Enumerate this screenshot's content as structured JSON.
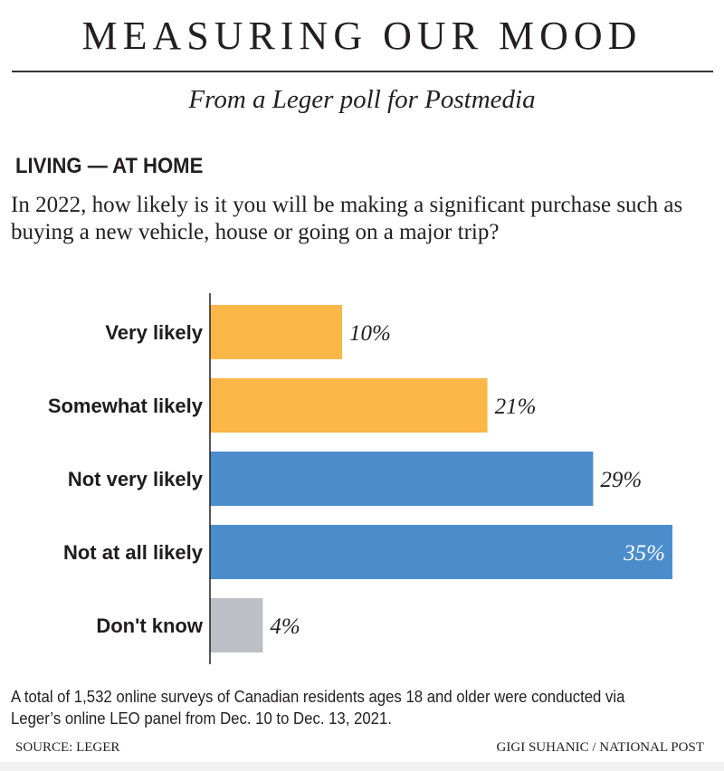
{
  "header": {
    "title": "MEASURING OUR MOOD",
    "subtitle": "From a Leger poll for Postmedia"
  },
  "section_heading": "LIVING — AT HOME",
  "question": "In 2022, how likely is it you will be making a significant purchase such as buying a new vehicle, house or going on a major trip?",
  "chart_data": {
    "type": "bar",
    "orientation": "horizontal",
    "title": "In 2022, how likely is it you will be making a significant purchase such as buying a new vehicle, house or going on a major trip?",
    "xlabel": "",
    "ylabel": "",
    "unit": "%",
    "xlim": [
      0,
      35
    ],
    "grid": false,
    "categories": [
      "Very likely",
      "Somewhat likely",
      "Not very likely",
      "Not at all likely",
      "Don't know"
    ],
    "values": [
      10,
      21,
      29,
      35,
      4
    ],
    "data_labels": [
      "10%",
      "21%",
      "29%",
      "35%",
      "4%"
    ],
    "colors": [
      "#fbb748",
      "#fbb748",
      "#4b8dcb",
      "#4b8dcb",
      "#bebec6"
    ],
    "label_inside": [
      false,
      false,
      false,
      true,
      false
    ]
  },
  "footer": {
    "note": "A total of 1,532 online surveys of Canadian residents ages 18 and older were conducted via Leger’s online LEO panel from Dec. 10 to Dec. 13, 2021.",
    "source": "SOURCE: LEGER",
    "credit": "GIGI SUHANIC / NATIONAL POST"
  }
}
